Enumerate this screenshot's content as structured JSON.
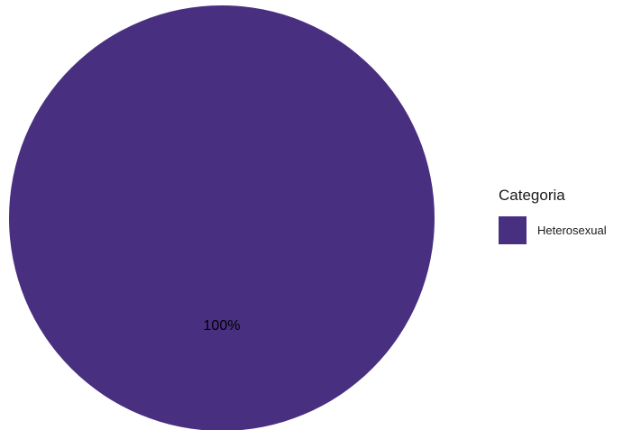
{
  "chart_data": {
    "type": "pie",
    "categories": [
      "Heterosexual"
    ],
    "values": [
      100
    ],
    "data_labels": [
      "100%"
    ],
    "colors": [
      "#482f80"
    ],
    "legend": {
      "title": "Categoria",
      "placement": "right"
    }
  }
}
